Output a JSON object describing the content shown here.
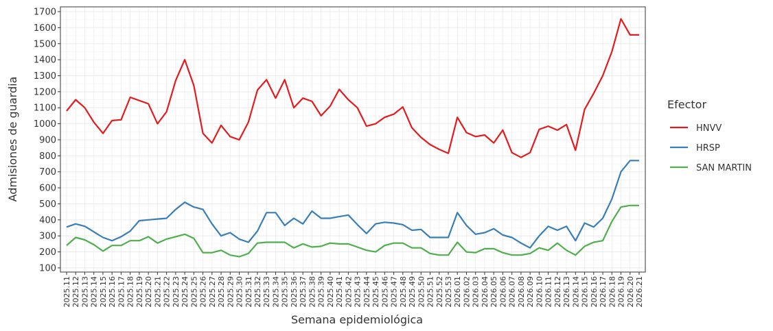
{
  "chart_data": {
    "type": "line",
    "x_label": "Semana epidemiológica",
    "y_label": "Admisiones de guardia",
    "legend_title": "Efector",
    "legend": "right",
    "grid": true,
    "categories": [
      "2025.11",
      "2025.12",
      "2025.13",
      "2025.14",
      "2025.15",
      "2025.16",
      "2025.17",
      "2025.18",
      "2025.19",
      "2025.20",
      "2025.21",
      "2025.22",
      "2025.23",
      "2025.24",
      "2025.25",
      "2025.26",
      "2025.27",
      "2025.28",
      "2025.29",
      "2025.30",
      "2025.31",
      "2025.32",
      "2025.33",
      "2025.34",
      "2025.35",
      "2025.36",
      "2025.37",
      "2025.38",
      "2025.39",
      "2025.40",
      "2025.41",
      "2025.42",
      "2025.43",
      "2025.44",
      "2025.45",
      "2025.46",
      "2025.47",
      "2025.48",
      "2025.49",
      "2025.50",
      "2025.51",
      "2025.52",
      "2025.53",
      "2026.01",
      "2026.02",
      "2026.03",
      "2026.04",
      "2026.05",
      "2026.06",
      "2026.07",
      "2026.08",
      "2026.09",
      "2026.10",
      "2026.11",
      "2026.12",
      "2026.13",
      "2026.14",
      "2026.15",
      "2026.16",
      "2026.17",
      "2026.18",
      "2026.19",
      "2026.20",
      "2026.21"
    ],
    "ylim": [
      74,
      1730
    ],
    "yticks": [
      100,
      200,
      300,
      400,
      500,
      600,
      700,
      800,
      900,
      1000,
      1100,
      1200,
      1300,
      1400,
      1500,
      1600,
      1700
    ],
    "series": [
      {
        "name": "HNVV",
        "color": "#e41a1c",
        "values": [
          1080,
          1150,
          1100,
          1010,
          940,
          1020,
          1025,
          1165,
          1145,
          1125,
          1000,
          1075,
          1270,
          1400,
          1240,
          940,
          880,
          990,
          920,
          900,
          1010,
          1210,
          1275,
          1160,
          1275,
          1100,
          1160,
          1140,
          1050,
          1110,
          1215,
          1150,
          1100,
          985,
          1000,
          1040,
          1060,
          1105,
          975,
          915,
          870,
          840,
          815,
          1040,
          945,
          920,
          930,
          880,
          960,
          820,
          790,
          820,
          965,
          985,
          960,
          995,
          835,
          1090,
          1190,
          1300,
          1450,
          1655,
          1555,
          1555
        ]
      },
      {
        "name": "HRSP",
        "color": "#377eb8",
        "values": [
          355,
          375,
          360,
          325,
          290,
          270,
          295,
          330,
          395,
          400,
          405,
          410,
          465,
          510,
          480,
          465,
          375,
          300,
          320,
          280,
          260,
          330,
          445,
          445,
          365,
          410,
          375,
          455,
          410,
          410,
          420,
          430,
          370,
          315,
          375,
          385,
          380,
          370,
          335,
          340,
          290,
          290,
          290,
          445,
          365,
          310,
          320,
          345,
          305,
          290,
          255,
          225,
          300,
          360,
          335,
          360,
          270,
          380,
          355,
          410,
          530,
          700,
          770,
          770
        ]
      },
      {
        "name": "SAN MARTIN",
        "color": "#4daf4a",
        "values": [
          240,
          290,
          275,
          245,
          205,
          240,
          240,
          270,
          270,
          295,
          255,
          280,
          295,
          310,
          285,
          195,
          195,
          210,
          180,
          170,
          190,
          255,
          260,
          260,
          260,
          225,
          250,
          230,
          235,
          255,
          250,
          250,
          230,
          210,
          200,
          240,
          255,
          255,
          225,
          225,
          190,
          180,
          180,
          260,
          200,
          195,
          220,
          220,
          195,
          180,
          180,
          190,
          225,
          210,
          255,
          210,
          180,
          235,
          260,
          270,
          390,
          480,
          490,
          490
        ]
      }
    ]
  }
}
